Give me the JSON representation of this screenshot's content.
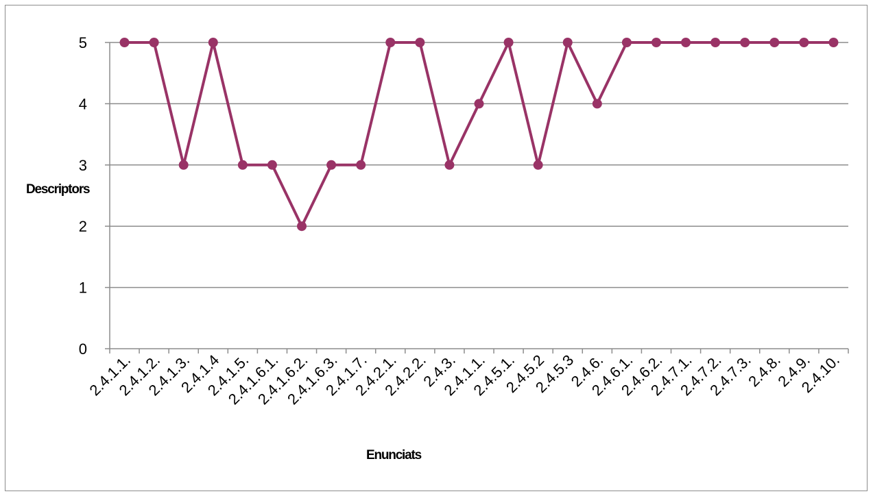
{
  "chart_data": {
    "type": "line",
    "title": "",
    "xlabel": "Enunciats",
    "ylabel": "Descriptors",
    "categories": [
      "2.4.1.1.",
      "2.4.1.2.",
      "2.4.1.3.",
      "2.4.1.4",
      "2.4.1.5.",
      "2.4.1.6.1.",
      "2.4.1.6.2.",
      "2.4.1.6.3.",
      "2.4.1.7.",
      "2.4.2.1.",
      "2.4.2.2.",
      "2.4.3.",
      "2.4.1.1.",
      "2.4.5.1.",
      "2.4.5.2",
      "2.4.5.3",
      "2.4.6.",
      "2.4.6.1.",
      "2.4.6.2.",
      "2.4.7.1.",
      "2.4.7.2.",
      "2.4.7.3.",
      "2.4.8.",
      "2.4.9.",
      "2.4.10."
    ],
    "series": [
      {
        "values": [
          5,
          5,
          3,
          5,
          3,
          3,
          2,
          3,
          3,
          5,
          5,
          3,
          4,
          5,
          3,
          5,
          4,
          5,
          5,
          5,
          5,
          5,
          5,
          5,
          5
        ]
      }
    ],
    "ylim": [
      0,
      5
    ],
    "yticks": [
      "0",
      "1",
      "2",
      "3",
      "4",
      "5"
    ],
    "grid": true,
    "legend": "none",
    "colors": {
      "line": "#993366",
      "grid": "#8c8c8c",
      "axis": "#8c8c8c"
    }
  }
}
